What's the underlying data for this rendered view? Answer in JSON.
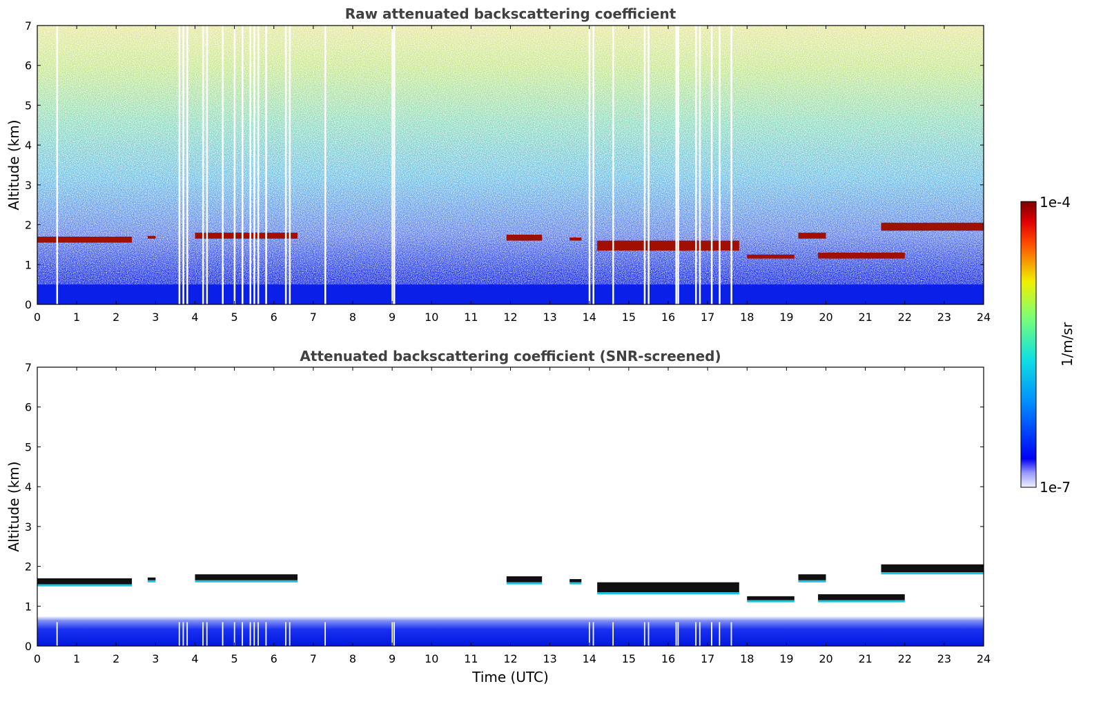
{
  "chart_data": [
    {
      "type": "heatmap",
      "title": "Raw attenuated backscattering coefficient",
      "xlabel": "",
      "ylabel": "Altitude (km)",
      "xlim": [
        0,
        24
      ],
      "ylim": [
        0,
        7
      ],
      "x_ticks": [
        "0",
        "1",
        "2",
        "3",
        "4",
        "5",
        "6",
        "7",
        "8",
        "9",
        "10",
        "11",
        "12",
        "13",
        "14",
        "15",
        "16",
        "17",
        "18",
        "19",
        "20",
        "21",
        "22",
        "23",
        "24"
      ],
      "y_ticks": [
        "0",
        "1",
        "2",
        "3",
        "4",
        "5",
        "6",
        "7"
      ],
      "cloud_layers": [
        {
          "t_start": 0.0,
          "t_end": 2.4,
          "base_km": 1.55,
          "top_km": 1.7
        },
        {
          "t_start": 2.8,
          "t_end": 3.0,
          "base_km": 1.65,
          "top_km": 1.72
        },
        {
          "t_start": 4.0,
          "t_end": 6.6,
          "base_km": 1.65,
          "top_km": 1.8
        },
        {
          "t_start": 11.9,
          "t_end": 12.8,
          "base_km": 1.6,
          "top_km": 1.75
        },
        {
          "t_start": 13.5,
          "t_end": 13.8,
          "base_km": 1.6,
          "top_km": 1.68
        },
        {
          "t_start": 14.2,
          "t_end": 17.8,
          "base_km": 1.35,
          "top_km": 1.6
        },
        {
          "t_start": 18.0,
          "t_end": 19.2,
          "base_km": 1.15,
          "top_km": 1.25
        },
        {
          "t_start": 19.3,
          "t_end": 20.0,
          "base_km": 1.65,
          "top_km": 1.8
        },
        {
          "t_start": 19.8,
          "t_end": 22.0,
          "base_km": 1.15,
          "top_km": 1.3
        },
        {
          "t_start": 21.4,
          "t_end": 24.0,
          "base_km": 1.85,
          "top_km": 2.05
        }
      ],
      "boundary_layer_top_km": 0.5,
      "missing_profiles_utc": [
        0.5,
        3.6,
        3.7,
        3.8,
        4.2,
        4.3,
        4.7,
        5.0,
        5.2,
        5.4,
        5.5,
        5.6,
        5.8,
        6.3,
        6.4,
        7.3,
        9.0,
        9.05,
        14.0,
        14.1,
        14.6,
        15.4,
        15.5,
        16.2,
        16.25,
        16.7,
        16.8,
        17.1,
        17.3,
        17.6
      ]
    },
    {
      "type": "heatmap",
      "title": "Attenuated backscattering coefficient (SNR-screened)",
      "xlabel": "Time (UTC)",
      "ylabel": "Altitude (km)",
      "xlim": [
        0,
        24
      ],
      "ylim": [
        0,
        7
      ],
      "x_ticks": [
        "0",
        "1",
        "2",
        "3",
        "4",
        "5",
        "6",
        "7",
        "8",
        "9",
        "10",
        "11",
        "12",
        "13",
        "14",
        "15",
        "16",
        "17",
        "18",
        "19",
        "20",
        "21",
        "22",
        "23",
        "24"
      ],
      "y_ticks": [
        "0",
        "1",
        "2",
        "3",
        "4",
        "5",
        "6",
        "7"
      ],
      "boundary_layer_top_km": 0.75
    }
  ],
  "colorbar": {
    "label": "1/m/sr",
    "max_label": "1e-4",
    "min_label": "1e-7",
    "scale": "log",
    "colormap": "jet"
  }
}
